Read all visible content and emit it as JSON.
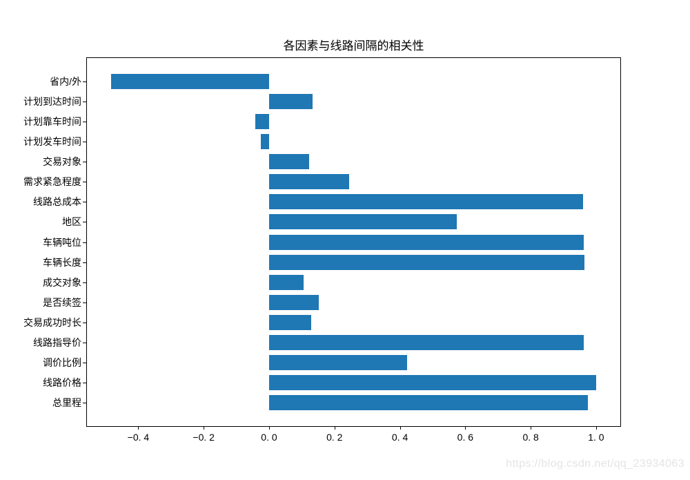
{
  "chart_data": {
    "type": "bar",
    "orientation": "horizontal",
    "title": "各因素与线路间隔的相关性",
    "xlabel": "",
    "ylabel": "",
    "grid": false,
    "legend": null,
    "bar_color": "#1f77b4",
    "axis_color": "#000000",
    "background_color": "#ffffff",
    "categories": [
      "省内/外",
      "计划到达时间",
      "计划靠车时间",
      "计划发车时间",
      "交易对象",
      "需求紧急程度",
      "线路总成本",
      "地区",
      "车辆吨位",
      "车辆长度",
      "成交对象",
      "是否续签",
      "交易成功时长",
      "线路指导价",
      "调价比例",
      "线路价格",
      "总里程"
    ],
    "values": [
      -0.484,
      0.134,
      -0.042,
      -0.025,
      0.122,
      0.245,
      0.96,
      0.574,
      0.963,
      0.964,
      0.106,
      0.152,
      0.129,
      0.963,
      0.421,
      1.0,
      0.974
    ],
    "xlim": [
      -0.557,
      1.074
    ],
    "x_ticks": [
      -0.4,
      -0.2,
      0.0,
      0.2,
      0.4,
      0.6,
      0.8,
      1.0
    ],
    "x_tick_labels": [
      "−0. 4",
      "−0. 2",
      "0. 0",
      "0. 2",
      "0. 4",
      "0. 6",
      "0. 8",
      "1. 0"
    ]
  },
  "watermark": {
    "text": "https://blog.csdn.net/qq_23934063",
    "color": "#e4e4e4"
  }
}
